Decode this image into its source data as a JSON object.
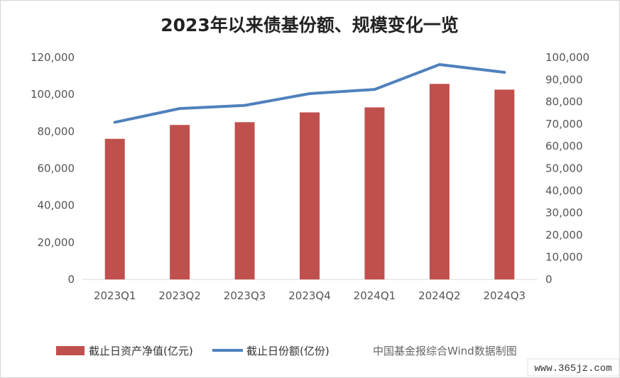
{
  "chart_data": {
    "type": "bar",
    "title": "2023年以来债基份额、规模变化一览",
    "categories": [
      "2023Q1",
      "2023Q2",
      "2023Q3",
      "2023Q4",
      "2024Q1",
      "2024Q2",
      "2024Q3"
    ],
    "series": [
      {
        "name": "截止日资产净值(亿元)",
        "type": "bar",
        "axis": "left",
        "color": "#c0504d",
        "values": [
          76000,
          83500,
          85000,
          90300,
          93000,
          105700,
          102600
        ]
      },
      {
        "name": "截止日份额(亿份)",
        "type": "line",
        "axis": "right",
        "color": "#4f81bd",
        "values": [
          70800,
          77000,
          78400,
          83700,
          85600,
          96800,
          93300
        ]
      }
    ],
    "y_left": {
      "range": [
        0,
        120000
      ],
      "ticks": [
        "0",
        "20,000",
        "40,000",
        "60,000",
        "80,000",
        "100,000",
        "120,000"
      ]
    },
    "y_right": {
      "range": [
        0,
        100000
      ],
      "ticks": [
        "0",
        "10,000",
        "20,000",
        "30,000",
        "40,000",
        "50,000",
        "60,000",
        "70,000",
        "80,000",
        "90,000",
        "100,000"
      ]
    },
    "grid": false,
    "legend_position": "bottom"
  },
  "source_note": "中国基金报综合Wind数据制图",
  "watermark": "www.365jz.com"
}
